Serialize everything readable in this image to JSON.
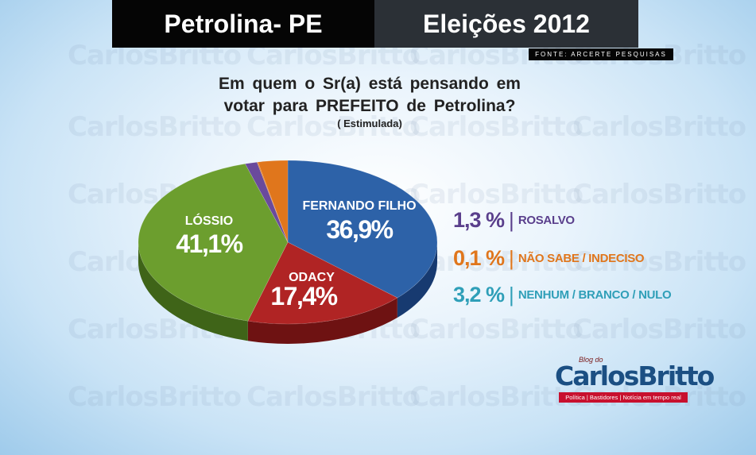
{
  "header": {
    "left_title": "Petrolina- PE",
    "right_title": "Eleições 2012"
  },
  "source": "FONTE: ARCERTE PESQUISAS",
  "question": {
    "line1": "Em quem o Sr(a) está pensando em",
    "line2": "votar para PREFEITO de Petrolina?",
    "subtitle": "( Estimulada)"
  },
  "chart_data": {
    "type": "pie",
    "title": "Em quem o Sr(a) está pensando em votar para PREFEITO de Petrolina?",
    "subtitle": "( Estimulada)",
    "slices": [
      {
        "label": "FERNANDO FILHO",
        "value": 36.9,
        "value_text": "36,9%",
        "color": "#2d62a8",
        "side_color": "#173a70"
      },
      {
        "label": "ODACY",
        "value": 17.4,
        "value_text": "17,4%",
        "color": "#b02424",
        "side_color": "#6e1212"
      },
      {
        "label": "LÓSSIO",
        "value": 41.1,
        "value_text": "41,1%",
        "color": "#6c9e2e",
        "side_color": "#3f6418"
      },
      {
        "label": "ROSALVO",
        "value": 1.3,
        "value_text": "1,3 %",
        "color": "#6a4a9c",
        "side_color": "#3d2a5e"
      },
      {
        "label": "NÃO SABE / INDECISO",
        "value": 0.1,
        "value_text": "0,1 %",
        "color": "#e0761c",
        "side_color": "#a04e0c"
      },
      {
        "label": "NENHUM / BRANCO / NULO",
        "value": 3.2,
        "value_text": "3,2 %",
        "color": "#e0761c",
        "side_color": "#a04e0c"
      }
    ]
  },
  "legend": [
    {
      "value": "1,3 %",
      "label": "ROSALVO",
      "color": "#5a3f8c"
    },
    {
      "value": "0,1 %",
      "label": "NÃO SABE / INDECISO",
      "color": "#e0761c"
    },
    {
      "value": "3,2 %",
      "label": "NENHUM / BRANCO / NULO",
      "color": "#2f9fb8"
    }
  ],
  "logo": {
    "small": "Blog do",
    "name": "CarlosBritto",
    "tagline": "Política | Bastidores | Notícia em tempo real"
  }
}
